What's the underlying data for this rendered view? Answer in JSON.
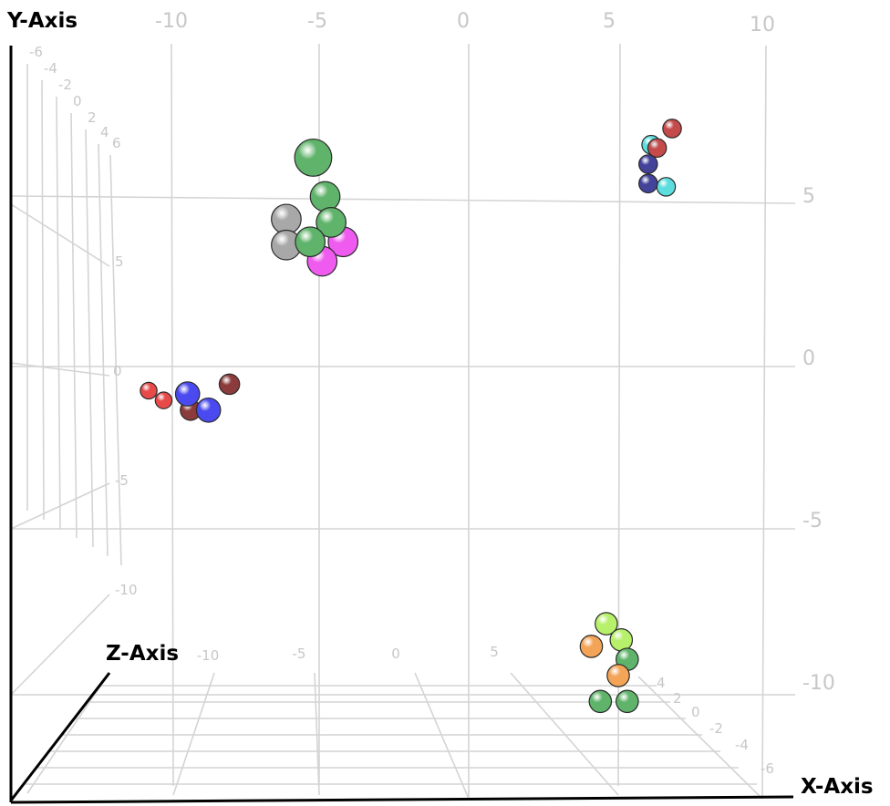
{
  "chart_data": {
    "type": "scatter3d",
    "axes": {
      "x": {
        "label": "X-Axis",
        "ticks": [
          "-10",
          "-5",
          "0",
          "5",
          "10"
        ],
        "range": [
          -15,
          10
        ]
      },
      "y": {
        "label": "Y-Axis",
        "ticks": [
          "5",
          "0",
          "-5",
          "-10"
        ],
        "range": [
          -15,
          10
        ]
      },
      "z": {
        "label": "Z-Axis",
        "ticks": [
          "-6",
          "-4",
          "-2",
          "0",
          "2",
          "4",
          "6"
        ]
      }
    },
    "side_y_ticks": [
      "5",
      "0",
      "-5",
      "-10"
    ],
    "floor_x_ticks": [
      "-10",
      "-5",
      "0",
      "5"
    ],
    "floor_z_ticks": [
      "4",
      "2",
      "0",
      "-2",
      "-4",
      "-6"
    ],
    "grid": true,
    "clusters": [
      {
        "points": [
          {
            "x": -5.2,
            "y": 6.2,
            "r": 1.0,
            "color": "#5fb36a"
          },
          {
            "x": -4.8,
            "y": 5.0,
            "r": 0.8,
            "color": "#5fb36a"
          },
          {
            "x": -6.1,
            "y": 4.3,
            "r": 0.8,
            "color": "#a8a8a8"
          },
          {
            "x": -6.1,
            "y": 3.5,
            "r": 0.8,
            "color": "#a8a8a8"
          },
          {
            "x": -4.2,
            "y": 3.6,
            "r": 0.8,
            "color": "#ee5bee"
          },
          {
            "x": -4.9,
            "y": 3.0,
            "r": 0.8,
            "color": "#ee5bee"
          },
          {
            "x": -4.6,
            "y": 4.2,
            "r": 0.8,
            "color": "#5fb36a"
          },
          {
            "x": -5.3,
            "y": 3.6,
            "r": 0.8,
            "color": "#5fb36a"
          }
        ]
      },
      {
        "points": [
          {
            "x": 6.8,
            "y": 7.1,
            "r": 0.5,
            "color": "#c54a4a"
          },
          {
            "x": 6.1,
            "y": 6.6,
            "r": 0.5,
            "color": "#5ddddd"
          },
          {
            "x": 6.3,
            "y": 6.5,
            "r": 0.5,
            "color": "#c54a4a"
          },
          {
            "x": 6.0,
            "y": 6.0,
            "r": 0.5,
            "color": "#43439a"
          },
          {
            "x": 6.6,
            "y": 5.3,
            "r": 0.5,
            "color": "#5ddddd"
          },
          {
            "x": 6.0,
            "y": 5.4,
            "r": 0.5,
            "color": "#43439a"
          }
        ]
      },
      {
        "points": [
          {
            "x": -10.7,
            "y": -1.0,
            "r": 0.45,
            "color": "#e84a4a"
          },
          {
            "x": -10.2,
            "y": -1.3,
            "r": 0.45,
            "color": "#e84a4a"
          },
          {
            "x": -9.3,
            "y": -1.6,
            "r": 0.55,
            "color": "#8b3b3b"
          },
          {
            "x": -8.0,
            "y": -0.8,
            "r": 0.55,
            "color": "#8b3b3b"
          },
          {
            "x": -9.4,
            "y": -1.1,
            "r": 0.65,
            "color": "#4a4af0"
          },
          {
            "x": -8.7,
            "y": -1.6,
            "r": 0.65,
            "color": "#4a4af0"
          }
        ]
      },
      {
        "points": [
          {
            "x": 4.6,
            "y": -8.2,
            "r": 0.6,
            "color": "#b7f06a"
          },
          {
            "x": 5.1,
            "y": -8.7,
            "r": 0.6,
            "color": "#b7f06a"
          },
          {
            "x": 4.1,
            "y": -8.9,
            "r": 0.6,
            "color": "#f3a457"
          },
          {
            "x": 5.3,
            "y": -9.3,
            "r": 0.6,
            "color": "#5fb36a"
          },
          {
            "x": 5.0,
            "y": -9.8,
            "r": 0.6,
            "color": "#f3a457"
          },
          {
            "x": 4.4,
            "y": -10.6,
            "r": 0.6,
            "color": "#5fb36a"
          },
          {
            "x": 5.3,
            "y": -10.6,
            "r": 0.6,
            "color": "#5fb36a"
          }
        ]
      }
    ]
  }
}
